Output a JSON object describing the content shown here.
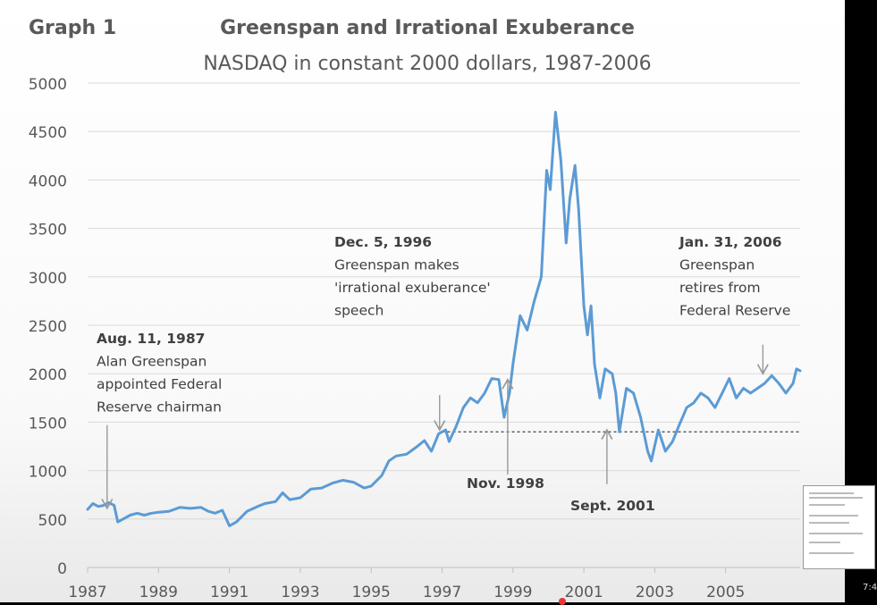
{
  "video_overlay": {
    "time_fragment": "7:4"
  },
  "chart_data": {
    "type": "line",
    "label": "Graph 1",
    "title": "Greenspan and Irrational Exuberance",
    "subtitle": "NASDAQ in constant 2000 dollars, 1987-2006",
    "xlim": [
      1987,
      2007.1
    ],
    "ylim": [
      0,
      5000
    ],
    "x_ticks": [
      "1987",
      "1989",
      "1991",
      "1993",
      "1995",
      "1997",
      "1999",
      "2001",
      "2003",
      "2005"
    ],
    "y_ticks": [
      "0",
      "500",
      "1000",
      "1500",
      "2000",
      "2500",
      "3000",
      "3500",
      "4000",
      "4500",
      "5000"
    ],
    "gridlines": true,
    "reference_line": {
      "y": 1400,
      "style": "dashed",
      "from_x": 1997.0,
      "to_x": 2007.1
    },
    "series": [
      {
        "name": "NASDAQ (constant 2000 dollars)",
        "color": "#5b9bd5",
        "points": [
          [
            1987.0,
            600
          ],
          [
            1987.15,
            660
          ],
          [
            1987.3,
            630
          ],
          [
            1987.45,
            640
          ],
          [
            1987.6,
            670
          ],
          [
            1987.75,
            640
          ],
          [
            1987.85,
            470
          ],
          [
            1988.0,
            500
          ],
          [
            1988.2,
            540
          ],
          [
            1988.4,
            560
          ],
          [
            1988.6,
            540
          ],
          [
            1988.8,
            560
          ],
          [
            1989.0,
            570
          ],
          [
            1989.3,
            580
          ],
          [
            1989.6,
            620
          ],
          [
            1989.9,
            610
          ],
          [
            1990.2,
            620
          ],
          [
            1990.4,
            580
          ],
          [
            1990.6,
            560
          ],
          [
            1990.8,
            590
          ],
          [
            1991.0,
            430
          ],
          [
            1991.2,
            470
          ],
          [
            1991.5,
            580
          ],
          [
            1991.8,
            630
          ],
          [
            1992.0,
            660
          ],
          [
            1992.3,
            680
          ],
          [
            1992.5,
            770
          ],
          [
            1992.7,
            700
          ],
          [
            1993.0,
            720
          ],
          [
            1993.3,
            810
          ],
          [
            1993.6,
            820
          ],
          [
            1993.9,
            870
          ],
          [
            1994.2,
            900
          ],
          [
            1994.5,
            880
          ],
          [
            1994.8,
            820
          ],
          [
            1995.0,
            840
          ],
          [
            1995.3,
            950
          ],
          [
            1995.5,
            1100
          ],
          [
            1995.7,
            1150
          ],
          [
            1996.0,
            1170
          ],
          [
            1996.3,
            1250
          ],
          [
            1996.5,
            1310
          ],
          [
            1996.7,
            1200
          ],
          [
            1996.9,
            1380
          ],
          [
            1997.1,
            1420
          ],
          [
            1997.2,
            1300
          ],
          [
            1997.4,
            1460
          ],
          [
            1997.6,
            1650
          ],
          [
            1997.8,
            1750
          ],
          [
            1998.0,
            1700
          ],
          [
            1998.2,
            1800
          ],
          [
            1998.4,
            1950
          ],
          [
            1998.6,
            1940
          ],
          [
            1998.75,
            1550
          ],
          [
            1998.9,
            1800
          ],
          [
            1999.0,
            2100
          ],
          [
            1999.2,
            2600
          ],
          [
            1999.4,
            2450
          ],
          [
            1999.6,
            2750
          ],
          [
            1999.8,
            3000
          ],
          [
            1999.95,
            4100
          ],
          [
            2000.05,
            3900
          ],
          [
            2000.2,
            4700
          ],
          [
            2000.35,
            4200
          ],
          [
            2000.5,
            3350
          ],
          [
            2000.6,
            3800
          ],
          [
            2000.75,
            4150
          ],
          [
            2000.85,
            3700
          ],
          [
            2001.0,
            2700
          ],
          [
            2001.1,
            2400
          ],
          [
            2001.2,
            2700
          ],
          [
            2001.3,
            2100
          ],
          [
            2001.45,
            1750
          ],
          [
            2001.6,
            2050
          ],
          [
            2001.8,
            2000
          ],
          [
            2001.9,
            1800
          ],
          [
            2002.0,
            1400
          ],
          [
            2002.2,
            1850
          ],
          [
            2002.4,
            1800
          ],
          [
            2002.6,
            1550
          ],
          [
            2002.8,
            1200
          ],
          [
            2002.9,
            1100
          ],
          [
            2003.1,
            1420
          ],
          [
            2003.3,
            1200
          ],
          [
            2003.5,
            1300
          ],
          [
            2003.7,
            1480
          ],
          [
            2003.9,
            1650
          ],
          [
            2004.1,
            1700
          ],
          [
            2004.3,
            1800
          ],
          [
            2004.5,
            1750
          ],
          [
            2004.7,
            1650
          ],
          [
            2004.9,
            1800
          ],
          [
            2005.1,
            1950
          ],
          [
            2005.3,
            1750
          ],
          [
            2005.5,
            1850
          ],
          [
            2005.7,
            1800
          ],
          [
            2005.9,
            1850
          ],
          [
            2006.1,
            1900
          ],
          [
            2006.3,
            1980
          ],
          [
            2006.5,
            1900
          ],
          [
            2006.7,
            1800
          ],
          [
            2006.9,
            1900
          ],
          [
            2007.0,
            2050
          ],
          [
            2007.1,
            2030
          ]
        ]
      }
    ],
    "annotations": [
      {
        "id": "greenspan-appointed",
        "lines": [
          "Aug. 11, 1987",
          "Alan Greenspan",
          "appointed Federal",
          "Reserve chairman"
        ],
        "x_pos": 1987.55,
        "y_pos": 1150,
        "arrow_from": 1470,
        "arrow_to": 610,
        "orient": "down"
      },
      {
        "id": "irrational-exuberance",
        "lines": [
          "Dec. 5, 1996",
          "Greenspan makes",
          "'irrational exuberance'",
          "speech"
        ],
        "x_pos": 1996.93,
        "y_pos": 2750,
        "arrow_from": 1780,
        "arrow_to": 1420,
        "orient": "down"
      },
      {
        "id": "nov-1998",
        "lines": [
          "Nov. 1998"
        ],
        "x_pos": 1998.85,
        "y_pos": 1000,
        "arrow_from": 960,
        "arrow_to": 1940,
        "orient": "up"
      },
      {
        "id": "sept-2001",
        "lines": [
          "Sept. 2001"
        ],
        "x_pos": 2001.65,
        "y_pos": 860,
        "arrow_from": 860,
        "arrow_to": 1420,
        "orient": "up"
      },
      {
        "id": "greenspan-retires",
        "lines": [
          "Jan. 31, 2006",
          "Greenspan",
          "retires from",
          "Federal Reserve"
        ],
        "x_pos": 2006.05,
        "y_pos": 2300,
        "arrow_from": 2300,
        "arrow_to": 2000,
        "orient": "down"
      }
    ]
  }
}
